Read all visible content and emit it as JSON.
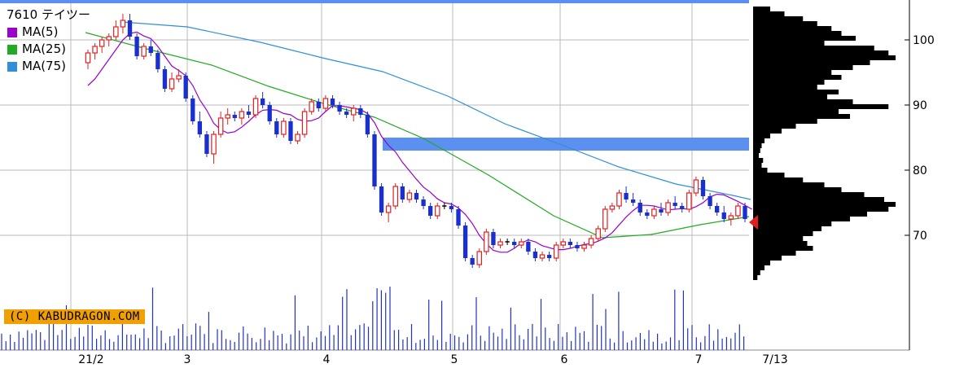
{
  "header": {
    "title": "7610 テイツー",
    "copyright": "(C) KABUDRAGON.COM"
  },
  "legend": [
    {
      "label": "MA(5)",
      "color": "#9900cc"
    },
    {
      "label": "MA(25)",
      "color": "#22aa22"
    },
    {
      "label": "MA(75)",
      "color": "#2f8fd8"
    }
  ],
  "colors": {
    "up_candle": "#e02020",
    "down_candle": "#1a2fd0",
    "doji": "#000000",
    "ma5": "#9900cc",
    "ma25": "#22aa22",
    "ma75": "#2f8fd8",
    "gap_band": "#5b8ff0",
    "volume": "#2233bb",
    "volume_profile": "#000000",
    "current_marker": "#e02020",
    "grid": "#bbbbbb"
  },
  "chart_data": {
    "type": "candlestick",
    "price_axis": {
      "ticks": [
        "100",
        "90",
        "80",
        "70"
      ],
      "ylim": [
        61,
        106
      ]
    },
    "x_axis": {
      "tick_labels": [
        "21/2",
        "3",
        "4",
        "5",
        "6",
        "7",
        "7/13"
      ]
    },
    "current_price": 72,
    "gap_bands": [
      {
        "low": 105.5,
        "high": 106.5
      },
      {
        "low": 83,
        "high": 85
      }
    ],
    "ohlc": [
      [
        96.5,
        98.5,
        95.5,
        98
      ],
      [
        98,
        99.5,
        97,
        99
      ],
      [
        99,
        100.5,
        98,
        100
      ],
      [
        100,
        101,
        99,
        100.5
      ],
      [
        100.5,
        103,
        100,
        102
      ],
      [
        102,
        104,
        101,
        103
      ],
      [
        103,
        104,
        100,
        100.5
      ],
      [
        100.5,
        101,
        97,
        97.5
      ],
      [
        97.5,
        99.5,
        97,
        99
      ],
      [
        99,
        100,
        97.5,
        98
      ],
      [
        98,
        98.5,
        95,
        95.5
      ],
      [
        95.5,
        96,
        92,
        92.5
      ],
      [
        92.5,
        95,
        92,
        94
      ],
      [
        94,
        95.5,
        93.5,
        94.5
      ],
      [
        94.5,
        95,
        90.5,
        91
      ],
      [
        91,
        91.5,
        87,
        87.5
      ],
      [
        87.5,
        89,
        85,
        85.5
      ],
      [
        85.5,
        86,
        82,
        82.5
      ],
      [
        82.5,
        86,
        81,
        85.5
      ],
      [
        85.5,
        89,
        85,
        88
      ],
      [
        88,
        89.5,
        87,
        88.5
      ],
      [
        88.5,
        89,
        87.5,
        88
      ],
      [
        88,
        89.5,
        87,
        89
      ],
      [
        89,
        90,
        88,
        88.5
      ],
      [
        88.5,
        91.5,
        88,
        91
      ],
      [
        91,
        92,
        89.5,
        90
      ],
      [
        90,
        90.5,
        87,
        87.5
      ],
      [
        87.5,
        88,
        85,
        85.5
      ],
      [
        85.5,
        88,
        85,
        87.5
      ],
      [
        87.5,
        88,
        84,
        84.5
      ],
      [
        84.5,
        86,
        84,
        85.5
      ],
      [
        85.5,
        89.5,
        85,
        89
      ],
      [
        89,
        91,
        88.5,
        90.5
      ],
      [
        90.5,
        91,
        89,
        89.5
      ],
      [
        89.5,
        91.5,
        89,
        91
      ],
      [
        91,
        91.5,
        89.5,
        90
      ],
      [
        90,
        90.5,
        88.5,
        89
      ],
      [
        89,
        89.5,
        88,
        88.5
      ],
      [
        88.5,
        90,
        87.5,
        89.5
      ],
      [
        89.5,
        90,
        88,
        88.5
      ],
      [
        88.5,
        89,
        85,
        85.5
      ],
      [
        85.5,
        86,
        77,
        77.5
      ],
      [
        77.5,
        78,
        73,
        73.5
      ],
      [
        73.5,
        75,
        72,
        74.5
      ],
      [
        74.5,
        78,
        74,
        77.5
      ],
      [
        77.5,
        78,
        75,
        75.5
      ],
      [
        75.5,
        77,
        75,
        76.5
      ],
      [
        76.5,
        77,
        75,
        75.5
      ],
      [
        75.5,
        76,
        74,
        74.5
      ],
      [
        74.5,
        75,
        72.5,
        73
      ],
      [
        73,
        75,
        72.5,
        74.5
      ],
      [
        74.5,
        75,
        74,
        74.5
      ],
      [
        74.5,
        75,
        73.5,
        74
      ],
      [
        74,
        74.5,
        71,
        71.5
      ],
      [
        71.5,
        72,
        66,
        66.5
      ],
      [
        66.5,
        67,
        65,
        65.5
      ],
      [
        65.5,
        68,
        65,
        67.5
      ],
      [
        67.5,
        71,
        67,
        70.5
      ],
      [
        70.5,
        71,
        68,
        68.5
      ],
      [
        68.5,
        69.5,
        68,
        69
      ],
      [
        69,
        69.5,
        68.5,
        69
      ],
      [
        69,
        69.5,
        68,
        68.5
      ],
      [
        68.5,
        69.5,
        68,
        69
      ],
      [
        69,
        69.5,
        67,
        67.5
      ],
      [
        67.5,
        68,
        66,
        66.5
      ],
      [
        66.5,
        67.5,
        66,
        67
      ],
      [
        67,
        67.5,
        66,
        66.5
      ],
      [
        66.5,
        69,
        66,
        68.5
      ],
      [
        68.5,
        69.5,
        68,
        69
      ],
      [
        69,
        69.5,
        68,
        68.5
      ],
      [
        68.5,
        69,
        67.5,
        68
      ],
      [
        68,
        69,
        67.5,
        68.5
      ],
      [
        68.5,
        70,
        68,
        69.5
      ],
      [
        69.5,
        71.5,
        69,
        71
      ],
      [
        71,
        74.5,
        70.5,
        74
      ],
      [
        74,
        75,
        73.5,
        74.5
      ],
      [
        74.5,
        77,
        74,
        76.5
      ],
      [
        76.5,
        77.5,
        75,
        75.5
      ],
      [
        75.5,
        76.5,
        74.5,
        75
      ],
      [
        75,
        75.5,
        73,
        73.5
      ],
      [
        73.5,
        74,
        72.5,
        73
      ],
      [
        73,
        74.5,
        72.5,
        74
      ],
      [
        74,
        75,
        73,
        73.5
      ],
      [
        73.5,
        75.5,
        73,
        75
      ],
      [
        75,
        76,
        74,
        74.5
      ],
      [
        74.5,
        75,
        73.5,
        74
      ],
      [
        74,
        77,
        73.5,
        76.5
      ],
      [
        76.5,
        79,
        76,
        78.5
      ],
      [
        78.5,
        79,
        75.5,
        76
      ],
      [
        76,
        76.5,
        74,
        74.5
      ],
      [
        74.5,
        75,
        73,
        73.5
      ],
      [
        73.5,
        74.5,
        72,
        72.5
      ],
      [
        72.5,
        73.5,
        71.5,
        73
      ],
      [
        73,
        75,
        72.5,
        74.5
      ],
      [
        74.5,
        75,
        72,
        72.5
      ]
    ],
    "ma5": [
      93,
      94,
      95.5,
      97,
      98.5,
      100,
      101,
      101.2,
      100.6,
      100.2,
      99,
      97.5,
      96,
      95.3,
      94.5,
      93,
      90.8,
      89.2,
      87.2,
      86.2,
      85.7,
      85.9,
      86.6,
      87.5,
      88.5,
      89.2,
      89.3,
      89.2,
      88.7,
      88.5,
      87.8,
      87.5,
      87.6,
      88,
      89,
      89.9,
      89.9,
      89.7,
      89.5,
      89.3,
      88.7,
      87.3,
      85.2,
      83.8,
      82.8,
      81.2,
      79.9,
      78.6,
      77.4,
      76.6,
      75.6,
      75,
      74.8,
      74.2,
      73.2,
      71.8,
      70,
      68.7,
      67.7,
      67.4,
      67.4,
      68,
      68.8,
      69.3,
      69,
      68.4,
      68.1,
      67.8,
      67.8,
      68,
      68.3,
      68.6,
      68.7,
      69.1,
      69.6,
      70.4,
      71.6,
      72.8,
      73.8,
      74.6,
      74.6,
      74.5,
      74.2,
      73.9,
      74,
      74.1,
      74,
      74.4,
      75,
      75.9,
      76.3,
      76.2,
      75.7,
      75.2,
      74.6,
      74
    ]
  }
}
